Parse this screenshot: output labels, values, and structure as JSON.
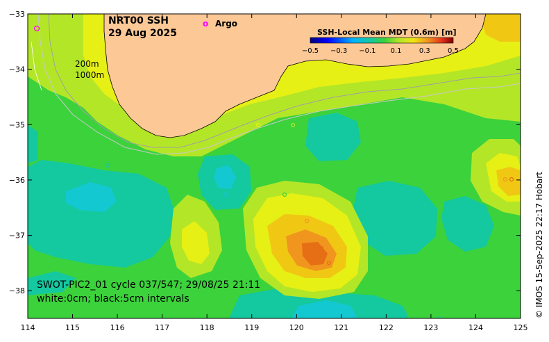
{
  "title": {
    "line1": "NRT00 SSH",
    "line2": "29 Aug 2025"
  },
  "legend_marker": {
    "symbol": "o",
    "label": "Argo",
    "color": "#ff00ff"
  },
  "isobath_labels": [
    "200m",
    "1000m"
  ],
  "colorbar": {
    "title": "SSH-Local Mean MDT (0.6m) [m]",
    "ticks": [
      "−0.5",
      "−0.3",
      "−0.1",
      "0.1",
      "0.3",
      "0.5"
    ],
    "range": [
      -0.5,
      0.5
    ]
  },
  "annotation": {
    "line1": "SWOT-PIC2_01 cycle 037/547; 29/08/25 21:11",
    "line2": "white:0cm; black:5cm intervals"
  },
  "credit": "© IMOS 15-Sep-2025 22:17 Hobart",
  "axes": {
    "x_ticks": [
      "114",
      "115",
      "116",
      "117",
      "118",
      "119",
      "120",
      "121",
      "122",
      "123",
      "124",
      "125"
    ],
    "y_ticks": [
      "−33",
      "−34",
      "−35",
      "−36",
      "−37",
      "−38"
    ],
    "x_range": [
      114,
      125
    ],
    "y_range": [
      -38.5,
      -33
    ]
  },
  "colors": {
    "land": "#fcc896",
    "ocean_base": "#3cd23c",
    "low": "#14c8a0",
    "very_low": "#14c8d2",
    "mid_high": "#b4e628",
    "high": "#e6f014",
    "higher": "#f0c814",
    "highest": "#f0961e",
    "peak": "#e66e14"
  }
}
